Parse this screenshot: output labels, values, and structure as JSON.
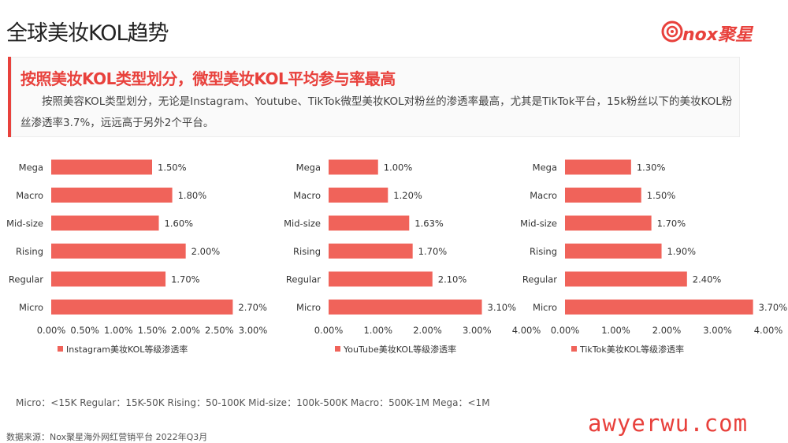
{
  "page": {
    "title": "全球美妆KOL趋势",
    "logo_text": "nox聚星",
    "banner_title": "按照美妆KOL类型划分，微型美妆KOL平均参与率最高",
    "banner_body": "按照美容KOL类型划分，无论是Instagram、Youtube、TikTok微型美妆KOL对粉丝的渗透率最高，尤其是TikTok平台，15k粉丝以下的美妆KOL粉丝渗透率3.7%，远远高于另外2个平台。",
    "footnote": "Micro：<15K Regular：15K-50K Rising：50-100K Mid-size：100k-500K Macro：500K-1M Mega：<1M",
    "source": "数据来源：Nox聚星海外网红营销平台 2022年Q3月",
    "watermark": "awyerwu.com"
  },
  "colors": {
    "bar": "#f0635a",
    "accent": "#e8413c"
  },
  "chart_data": [
    {
      "type": "bar",
      "orientation": "horizontal",
      "categories": [
        "Mega",
        "Macro",
        "Mid-size",
        "Rising",
        "Regular",
        "Micro"
      ],
      "series": [
        {
          "name": "Instagram美妆KOL等级渗透率",
          "values": [
            1.5,
            1.8,
            1.6,
            2.0,
            1.7,
            2.7
          ]
        }
      ],
      "value_labels": [
        "1.50%",
        "1.80%",
        "1.60%",
        "2.00%",
        "1.70%",
        "2.70%"
      ],
      "xticks": [
        "0.00%",
        "0.50%",
        "1.00%",
        "1.50%",
        "2.00%",
        "2.50%",
        "3.00%"
      ],
      "xlim": [
        0,
        3.0
      ],
      "legend": "bottom"
    },
    {
      "type": "bar",
      "orientation": "horizontal",
      "categories": [
        "Mega",
        "Macro",
        "Mid-size",
        "Rising",
        "Regular",
        "Micro"
      ],
      "series": [
        {
          "name": "YouTube美妆KOL等级渗透率",
          "values": [
            1.0,
            1.2,
            1.63,
            1.7,
            2.1,
            3.1
          ]
        }
      ],
      "value_labels": [
        "1.00%",
        "1.20%",
        "1.63%",
        "1.70%",
        "2.10%",
        "3.10%"
      ],
      "xticks": [
        "0.00%",
        "1.00%",
        "2.00%",
        "3.00%",
        "4.00%"
      ],
      "xlim": [
        0,
        4.0
      ],
      "legend": "bottom"
    },
    {
      "type": "bar",
      "orientation": "horizontal",
      "categories": [
        "Mega",
        "Macro",
        "Mid-size",
        "Rising",
        "Regular",
        "Micro"
      ],
      "series": [
        {
          "name": "TikTok美妆KOL等级渗透率",
          "values": [
            1.3,
            1.5,
            1.7,
            1.9,
            2.4,
            3.7
          ]
        }
      ],
      "value_labels": [
        "1.30%",
        "1.50%",
        "1.70%",
        "1.90%",
        "2.40%",
        "3.70%"
      ],
      "xticks": [
        "0.00%",
        "1.00%",
        "2.00%",
        "3.00%",
        "4.00%"
      ],
      "xlim": [
        0,
        4.0
      ],
      "legend": "bottom"
    }
  ]
}
